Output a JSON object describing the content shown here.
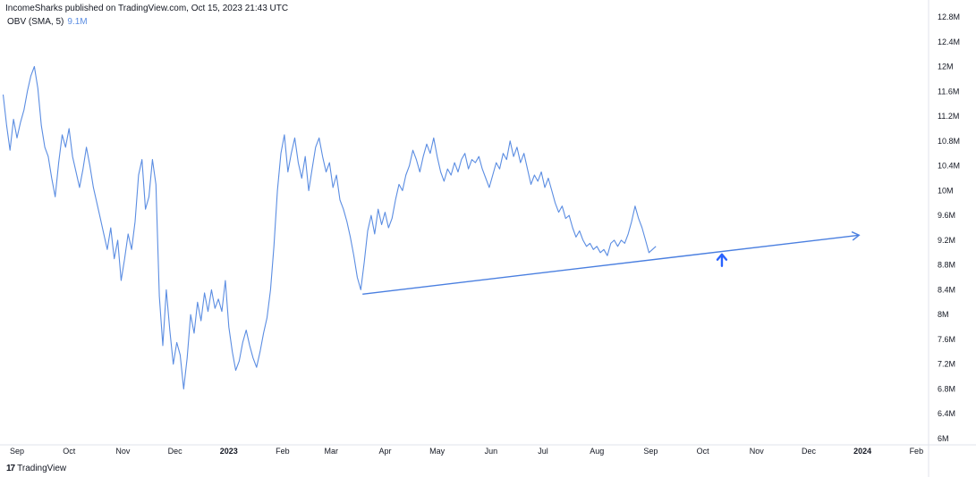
{
  "header": {
    "publisher_note": "IncomeSharks published on TradingView.com, Oct 15, 2023 21:43 UTC"
  },
  "legend": {
    "indicator": "OBV (SMA, 5)",
    "value": "9.1M"
  },
  "footer": {
    "logo_text": "TradingView",
    "logo_mark": "17"
  },
  "colors": {
    "line": "#5b8de2",
    "trendline": "#4a7fe0",
    "arrow": "#2962ff",
    "axis_border": "#e0e3eb"
  },
  "chart_data": {
    "type": "line",
    "title": "",
    "xlabel": "",
    "ylabel": "",
    "y_unit": "M",
    "ylim": [
      6.0,
      12.8
    ],
    "grid": false,
    "y_ticks": [
      "12.8M",
      "12.4M",
      "12M",
      "11.6M",
      "11.2M",
      "10.8M",
      "10.4M",
      "10M",
      "9.6M",
      "9.2M",
      "8.8M",
      "8.4M",
      "8M",
      "7.6M",
      "7.2M",
      "6.8M",
      "6.4M",
      "6M"
    ],
    "x_ticks": [
      {
        "label": "Sep",
        "date": "2022-09-01",
        "bold": false
      },
      {
        "label": "Oct",
        "date": "2022-10-01",
        "bold": false
      },
      {
        "label": "Nov",
        "date": "2022-11-01",
        "bold": false
      },
      {
        "label": "Dec",
        "date": "2022-12-01",
        "bold": false
      },
      {
        "label": "2023",
        "date": "2023-01-01",
        "bold": true
      },
      {
        "label": "Feb",
        "date": "2023-02-01",
        "bold": false
      },
      {
        "label": "Mar",
        "date": "2023-03-01",
        "bold": false
      },
      {
        "label": "Apr",
        "date": "2023-04-01",
        "bold": false
      },
      {
        "label": "May",
        "date": "2023-05-01",
        "bold": false
      },
      {
        "label": "Jun",
        "date": "2023-06-01",
        "bold": false
      },
      {
        "label": "Jul",
        "date": "2023-07-01",
        "bold": false
      },
      {
        "label": "Aug",
        "date": "2023-08-01",
        "bold": false
      },
      {
        "label": "Sep",
        "date": "2023-09-01",
        "bold": false
      },
      {
        "label": "Oct",
        "date": "2023-10-01",
        "bold": false
      },
      {
        "label": "Nov",
        "date": "2023-11-01",
        "bold": false
      },
      {
        "label": "Dec",
        "date": "2023-12-01",
        "bold": false
      },
      {
        "label": "2024",
        "date": "2024-01-01",
        "bold": true
      },
      {
        "label": "Feb",
        "date": "2024-02-01",
        "bold": false
      }
    ],
    "series": [
      {
        "name": "OBV (SMA, 5)",
        "points": [
          [
            "2022-08-24",
            11.55
          ],
          [
            "2022-08-26",
            11.05
          ],
          [
            "2022-08-28",
            10.65
          ],
          [
            "2022-08-30",
            11.15
          ],
          [
            "2022-09-01",
            10.85
          ],
          [
            "2022-09-03",
            11.1
          ],
          [
            "2022-09-05",
            11.3
          ],
          [
            "2022-09-07",
            11.6
          ],
          [
            "2022-09-09",
            11.85
          ],
          [
            "2022-09-11",
            12.0
          ],
          [
            "2022-09-13",
            11.65
          ],
          [
            "2022-09-15",
            11.05
          ],
          [
            "2022-09-17",
            10.7
          ],
          [
            "2022-09-19",
            10.55
          ],
          [
            "2022-09-21",
            10.2
          ],
          [
            "2022-09-23",
            9.9
          ],
          [
            "2022-09-25",
            10.45
          ],
          [
            "2022-09-27",
            10.9
          ],
          [
            "2022-09-29",
            10.7
          ],
          [
            "2022-10-01",
            11.0
          ],
          [
            "2022-10-03",
            10.55
          ],
          [
            "2022-10-05",
            10.3
          ],
          [
            "2022-10-07",
            10.05
          ],
          [
            "2022-10-09",
            10.35
          ],
          [
            "2022-10-11",
            10.7
          ],
          [
            "2022-10-13",
            10.4
          ],
          [
            "2022-10-15",
            10.05
          ],
          [
            "2022-10-17",
            9.8
          ],
          [
            "2022-10-19",
            9.55
          ],
          [
            "2022-10-21",
            9.3
          ],
          [
            "2022-10-23",
            9.05
          ],
          [
            "2022-10-25",
            9.4
          ],
          [
            "2022-10-27",
            8.9
          ],
          [
            "2022-10-29",
            9.2
          ],
          [
            "2022-10-31",
            8.55
          ],
          [
            "2022-11-02",
            8.9
          ],
          [
            "2022-11-04",
            9.3
          ],
          [
            "2022-11-06",
            9.05
          ],
          [
            "2022-11-08",
            9.5
          ],
          [
            "2022-11-10",
            10.25
          ],
          [
            "2022-11-12",
            10.5
          ],
          [
            "2022-11-14",
            9.7
          ],
          [
            "2022-11-16",
            9.9
          ],
          [
            "2022-11-18",
            10.5
          ],
          [
            "2022-11-20",
            10.1
          ],
          [
            "2022-11-22",
            8.3
          ],
          [
            "2022-11-24",
            7.5
          ],
          [
            "2022-11-26",
            8.4
          ],
          [
            "2022-11-28",
            7.75
          ],
          [
            "2022-11-30",
            7.2
          ],
          [
            "2022-12-02",
            7.55
          ],
          [
            "2022-12-04",
            7.35
          ],
          [
            "2022-12-06",
            6.8
          ],
          [
            "2022-12-08",
            7.3
          ],
          [
            "2022-12-10",
            8.0
          ],
          [
            "2022-12-12",
            7.7
          ],
          [
            "2022-12-14",
            8.2
          ],
          [
            "2022-12-16",
            7.9
          ],
          [
            "2022-12-18",
            8.35
          ],
          [
            "2022-12-20",
            8.05
          ],
          [
            "2022-12-22",
            8.4
          ],
          [
            "2022-12-24",
            8.1
          ],
          [
            "2022-12-26",
            8.25
          ],
          [
            "2022-12-28",
            8.05
          ],
          [
            "2022-12-30",
            8.55
          ],
          [
            "2023-01-01",
            7.8
          ],
          [
            "2023-01-03",
            7.4
          ],
          [
            "2023-01-05",
            7.1
          ],
          [
            "2023-01-07",
            7.25
          ],
          [
            "2023-01-09",
            7.55
          ],
          [
            "2023-01-11",
            7.75
          ],
          [
            "2023-01-13",
            7.5
          ],
          [
            "2023-01-15",
            7.3
          ],
          [
            "2023-01-17",
            7.15
          ],
          [
            "2023-01-19",
            7.4
          ],
          [
            "2023-01-21",
            7.7
          ],
          [
            "2023-01-23",
            7.95
          ],
          [
            "2023-01-25",
            8.4
          ],
          [
            "2023-01-27",
            9.1
          ],
          [
            "2023-01-29",
            10.0
          ],
          [
            "2023-01-31",
            10.6
          ],
          [
            "2023-02-02",
            10.9
          ],
          [
            "2023-02-04",
            10.3
          ],
          [
            "2023-02-06",
            10.6
          ],
          [
            "2023-02-08",
            10.85
          ],
          [
            "2023-02-10",
            10.45
          ],
          [
            "2023-02-12",
            10.2
          ],
          [
            "2023-02-14",
            10.55
          ],
          [
            "2023-02-16",
            10.0
          ],
          [
            "2023-02-18",
            10.35
          ],
          [
            "2023-02-20",
            10.7
          ],
          [
            "2023-02-22",
            10.85
          ],
          [
            "2023-02-24",
            10.55
          ],
          [
            "2023-02-26",
            10.3
          ],
          [
            "2023-02-28",
            10.45
          ],
          [
            "2023-03-02",
            10.05
          ],
          [
            "2023-03-04",
            10.25
          ],
          [
            "2023-03-06",
            9.85
          ],
          [
            "2023-03-08",
            9.7
          ],
          [
            "2023-03-10",
            9.5
          ],
          [
            "2023-03-12",
            9.25
          ],
          [
            "2023-03-14",
            8.95
          ],
          [
            "2023-03-16",
            8.6
          ],
          [
            "2023-03-18",
            8.4
          ],
          [
            "2023-03-20",
            8.85
          ],
          [
            "2023-03-22",
            9.35
          ],
          [
            "2023-03-24",
            9.6
          ],
          [
            "2023-03-26",
            9.3
          ],
          [
            "2023-03-28",
            9.7
          ],
          [
            "2023-03-30",
            9.45
          ],
          [
            "2023-04-01",
            9.65
          ],
          [
            "2023-04-03",
            9.4
          ],
          [
            "2023-04-05",
            9.55
          ],
          [
            "2023-04-07",
            9.85
          ],
          [
            "2023-04-09",
            10.1
          ],
          [
            "2023-04-11",
            10.0
          ],
          [
            "2023-04-13",
            10.25
          ],
          [
            "2023-04-15",
            10.4
          ],
          [
            "2023-04-17",
            10.65
          ],
          [
            "2023-04-19",
            10.5
          ],
          [
            "2023-04-21",
            10.3
          ],
          [
            "2023-04-23",
            10.55
          ],
          [
            "2023-04-25",
            10.75
          ],
          [
            "2023-04-27",
            10.6
          ],
          [
            "2023-04-29",
            10.85
          ],
          [
            "2023-05-01",
            10.55
          ],
          [
            "2023-05-03",
            10.3
          ],
          [
            "2023-05-05",
            10.15
          ],
          [
            "2023-05-07",
            10.35
          ],
          [
            "2023-05-09",
            10.25
          ],
          [
            "2023-05-11",
            10.45
          ],
          [
            "2023-05-13",
            10.3
          ],
          [
            "2023-05-15",
            10.5
          ],
          [
            "2023-05-17",
            10.6
          ],
          [
            "2023-05-19",
            10.35
          ],
          [
            "2023-05-21",
            10.5
          ],
          [
            "2023-05-23",
            10.45
          ],
          [
            "2023-05-25",
            10.55
          ],
          [
            "2023-05-27",
            10.35
          ],
          [
            "2023-05-29",
            10.2
          ],
          [
            "2023-05-31",
            10.05
          ],
          [
            "2023-06-02",
            10.25
          ],
          [
            "2023-06-04",
            10.45
          ],
          [
            "2023-06-06",
            10.35
          ],
          [
            "2023-06-08",
            10.6
          ],
          [
            "2023-06-10",
            10.5
          ],
          [
            "2023-06-12",
            10.8
          ],
          [
            "2023-06-14",
            10.55
          ],
          [
            "2023-06-16",
            10.7
          ],
          [
            "2023-06-18",
            10.45
          ],
          [
            "2023-06-20",
            10.6
          ],
          [
            "2023-06-22",
            10.35
          ],
          [
            "2023-06-24",
            10.1
          ],
          [
            "2023-06-26",
            10.25
          ],
          [
            "2023-06-28",
            10.15
          ],
          [
            "2023-06-30",
            10.3
          ],
          [
            "2023-07-02",
            10.05
          ],
          [
            "2023-07-04",
            10.2
          ],
          [
            "2023-07-06",
            10.0
          ],
          [
            "2023-07-08",
            9.8
          ],
          [
            "2023-07-10",
            9.65
          ],
          [
            "2023-07-12",
            9.75
          ],
          [
            "2023-07-14",
            9.55
          ],
          [
            "2023-07-16",
            9.6
          ],
          [
            "2023-07-18",
            9.4
          ],
          [
            "2023-07-20",
            9.25
          ],
          [
            "2023-07-22",
            9.35
          ],
          [
            "2023-07-24",
            9.2
          ],
          [
            "2023-07-26",
            9.1
          ],
          [
            "2023-07-28",
            9.15
          ],
          [
            "2023-07-30",
            9.05
          ],
          [
            "2023-08-01",
            9.1
          ],
          [
            "2023-08-03",
            9.0
          ],
          [
            "2023-08-05",
            9.05
          ],
          [
            "2023-08-07",
            8.95
          ],
          [
            "2023-08-09",
            9.15
          ],
          [
            "2023-08-11",
            9.2
          ],
          [
            "2023-08-13",
            9.1
          ],
          [
            "2023-08-15",
            9.2
          ],
          [
            "2023-08-17",
            9.15
          ],
          [
            "2023-08-19",
            9.3
          ],
          [
            "2023-08-21",
            9.5
          ],
          [
            "2023-08-23",
            9.75
          ],
          [
            "2023-08-25",
            9.55
          ],
          [
            "2023-08-27",
            9.4
          ],
          [
            "2023-08-29",
            9.2
          ],
          [
            "2023-08-31",
            9.0
          ],
          [
            "2023-09-02",
            9.05
          ],
          [
            "2023-09-04",
            9.1
          ]
        ]
      }
    ],
    "annotations": [
      {
        "type": "trendline",
        "from": [
          "2023-03-19",
          8.33
        ],
        "to": [
          "2023-12-30",
          9.28
        ],
        "arrowhead": true
      },
      {
        "type": "arrow",
        "at": [
          "2023-10-12",
          9.0
        ],
        "direction": "up"
      }
    ]
  }
}
